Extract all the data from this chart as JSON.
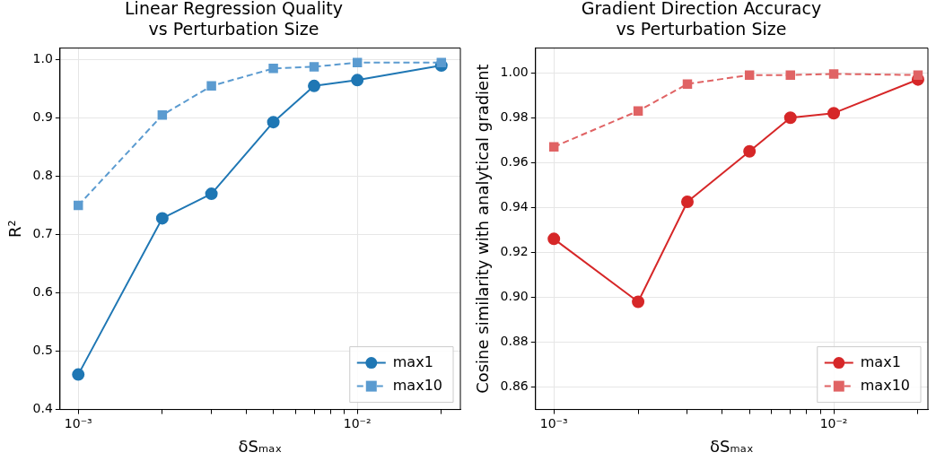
{
  "chart_data": [
    {
      "type": "line",
      "title": "Linear Regression Quality\nvs Perturbation Size",
      "xlabel": "δSₘₐₓ",
      "ylabel": "R²",
      "log": "x",
      "x": [
        0.001,
        0.002,
        0.003,
        0.005,
        0.007,
        0.01,
        0.02
      ],
      "xlim": [
        0.00086,
        0.0234
      ],
      "xticks": [
        {
          "value": 0.001,
          "label": "10⁻³"
        },
        {
          "value": 0.002,
          "label": null
        },
        {
          "value": 0.003,
          "label": null
        },
        {
          "value": 0.004,
          "label": null
        },
        {
          "value": 0.005,
          "label": null
        },
        {
          "value": 0.006,
          "label": null
        },
        {
          "value": 0.007,
          "label": null
        },
        {
          "value": 0.008,
          "label": null
        },
        {
          "value": 0.009,
          "label": null
        },
        {
          "value": 0.01,
          "label": "10⁻²"
        },
        {
          "value": 0.02,
          "label": null
        }
      ],
      "ylim": [
        0.4,
        1.02
      ],
      "yticks": [
        0.4,
        0.5,
        0.6,
        0.7,
        0.8,
        0.9,
        {
          "value": 1,
          "label": "1.0"
        }
      ],
      "grid": true,
      "legend": "bottom right",
      "series": [
        {
          "name": "max1",
          "color": "#1f77b4",
          "marker": "circle",
          "line_style": "solid",
          "values": [
            0.46,
            0.728,
            0.77,
            0.893,
            0.955,
            0.965,
            0.99
          ]
        },
        {
          "name": "max10",
          "color": "#5b9bd0",
          "marker": "square",
          "line_style": "dashed",
          "values": [
            0.75,
            0.905,
            0.955,
            0.985,
            0.988,
            0.995,
            0.995
          ]
        }
      ]
    },
    {
      "type": "line",
      "title": "Gradient Direction Accuracy\nvs Perturbation Size",
      "xlabel": "δSₘₐₓ",
      "ylabel": "Cosine similarity with analytical gradient",
      "log": "x",
      "x": [
        0.001,
        0.002,
        0.003,
        0.005,
        0.007,
        0.01,
        0.02
      ],
      "xlim": [
        0.00086,
        0.0217
      ],
      "xticks": [
        {
          "value": 0.001,
          "label": "10⁻³"
        },
        {
          "value": 0.002,
          "label": null
        },
        {
          "value": 0.003,
          "label": null
        },
        {
          "value": 0.004,
          "label": null
        },
        {
          "value": 0.005,
          "label": null
        },
        {
          "value": 0.006,
          "label": null
        },
        {
          "value": 0.007,
          "label": null
        },
        {
          "value": 0.008,
          "label": null
        },
        {
          "value": 0.009,
          "label": null
        },
        {
          "value": 0.01,
          "label": "10⁻²"
        },
        {
          "value": 0.02,
          "label": null
        }
      ],
      "ylim": [
        0.85,
        1.011
      ],
      "yticks": [
        {
          "value": 0.86,
          "label": "0.86"
        },
        {
          "value": 0.88,
          "label": "0.88"
        },
        {
          "value": 0.9,
          "label": "0.90"
        },
        {
          "value": 0.92,
          "label": "0.92"
        },
        {
          "value": 0.94,
          "label": "0.94"
        },
        {
          "value": 0.96,
          "label": "0.96"
        },
        {
          "value": 0.98,
          "label": "0.98"
        },
        {
          "value": 1.0,
          "label": "1.00"
        }
      ],
      "grid": true,
      "legend": "bottom right",
      "series": [
        {
          "name": "max1",
          "color": "#d62728",
          "marker": "circle",
          "line_style": "solid",
          "values": [
            0.926,
            0.898,
            0.9425,
            0.965,
            0.98,
            0.982,
            0.997
          ]
        },
        {
          "name": "max10",
          "color": "#e06364",
          "marker": "square",
          "line_style": "dashed",
          "values": [
            0.967,
            0.983,
            0.995,
            0.999,
            0.999,
            0.9995,
            0.999
          ]
        }
      ]
    }
  ]
}
